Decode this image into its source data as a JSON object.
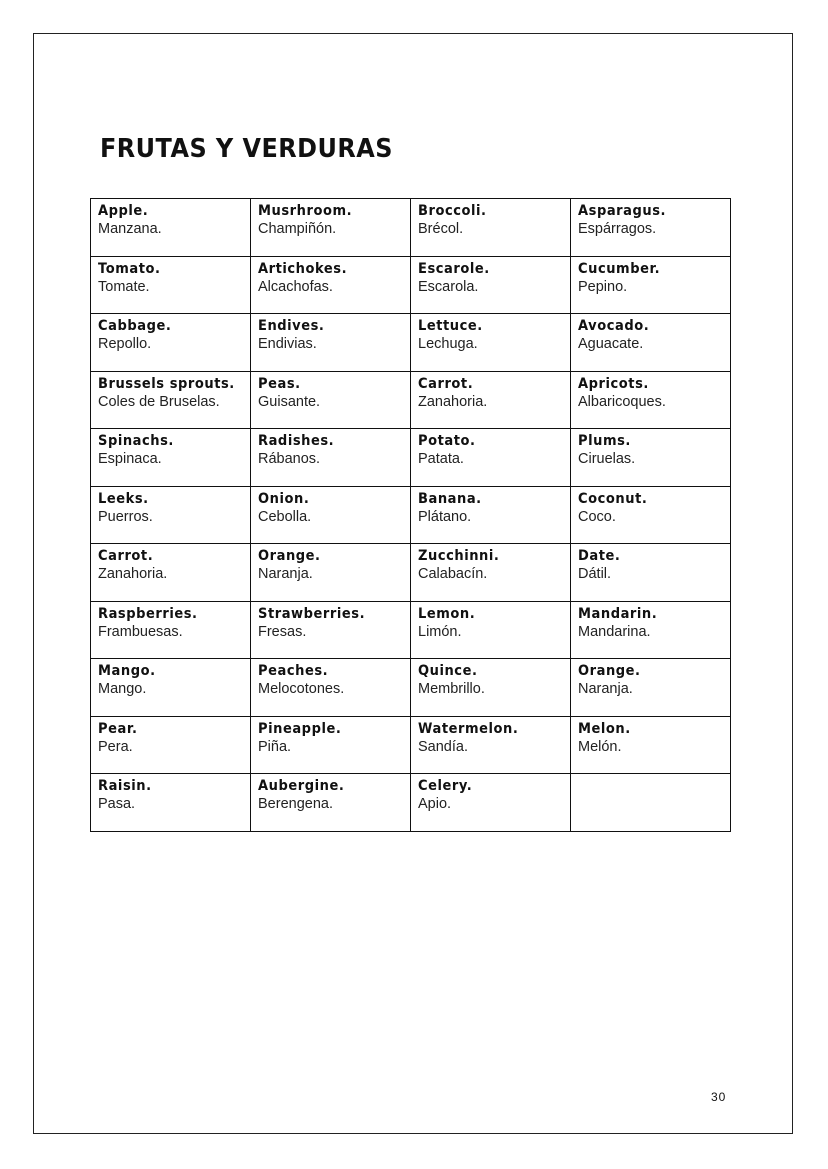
{
  "title": "FRUTAS Y VERDURAS",
  "page_number": "30",
  "rows": [
    [
      {
        "en": "Apple.",
        "es": "Manzana."
      },
      {
        "en": "Musrhroom.",
        "es": "Champiñón."
      },
      {
        "en": "Broccoli.",
        "es": "Brécol."
      },
      {
        "en": "Asparagus.",
        "es": "Espárragos."
      }
    ],
    [
      {
        "en": "Tomato.",
        "es": "Tomate."
      },
      {
        "en": "Artichokes.",
        "es": "Alcachofas."
      },
      {
        "en": "Escarole.",
        "es": "Escarola."
      },
      {
        "en": "Cucumber.",
        "es": "Pepino."
      }
    ],
    [
      {
        "en": "Cabbage.",
        "es": "Repollo."
      },
      {
        "en": "Endives.",
        "es": "Endivias."
      },
      {
        "en": "Lettuce.",
        "es": "Lechuga."
      },
      {
        "en": "Avocado.",
        "es": "Aguacate."
      }
    ],
    [
      {
        "en": "Brussels sprouts.",
        "es": "Coles de Bruselas."
      },
      {
        "en": "Peas.",
        "es": "Guisante."
      },
      {
        "en": "Carrot.",
        "es": "Zanahoria."
      },
      {
        "en": "Apricots.",
        "es": "Albaricoques."
      }
    ],
    [
      {
        "en": "Spinachs.",
        "es": "Espinaca."
      },
      {
        "en": "Radishes.",
        "es": "Rábanos."
      },
      {
        "en": "Potato.",
        "es": "Patata."
      },
      {
        "en": "Plums.",
        "es": "Ciruelas."
      }
    ],
    [
      {
        "en": "Leeks.",
        "es": "Puerros."
      },
      {
        "en": "Onion.",
        "es": "Cebolla."
      },
      {
        "en": "Banana.",
        "es": "Plátano."
      },
      {
        "en": "Coconut.",
        "es": "Coco."
      }
    ],
    [
      {
        "en": "Carrot.",
        "es": "Zanahoria."
      },
      {
        "en": "Orange.",
        "es": "Naranja."
      },
      {
        "en": "Zucchinni.",
        "es": "Calabacín."
      },
      {
        "en": "Date.",
        "es": "Dátil."
      }
    ],
    [
      {
        "en": "Raspberries.",
        "es": "Frambuesas."
      },
      {
        "en": "Strawberries.",
        "es": "Fresas."
      },
      {
        "en": "Lemon.",
        "es": "Limón."
      },
      {
        "en": "Mandarin.",
        "es": "Mandarina."
      }
    ],
    [
      {
        "en": "Mango.",
        "es": "Mango."
      },
      {
        "en": "Peaches.",
        "es": "Melocotones."
      },
      {
        "en": "Quince.",
        "es": "Membrillo."
      },
      {
        "en": "Orange.",
        "es": "Naranja."
      }
    ],
    [
      {
        "en": "Pear.",
        "es": "Pera."
      },
      {
        "en": "Pineapple.",
        "es": "Piña."
      },
      {
        "en": "Watermelon.",
        "es": "Sandía."
      },
      {
        "en": "Melon.",
        "es": "Melón."
      }
    ],
    [
      {
        "en": "Raisin.",
        "es": "Pasa."
      },
      {
        "en": "Aubergine.",
        "es": "Berengena."
      },
      {
        "en": "Celery.",
        "es": "Apio."
      },
      {
        "en": "",
        "es": ""
      }
    ]
  ]
}
